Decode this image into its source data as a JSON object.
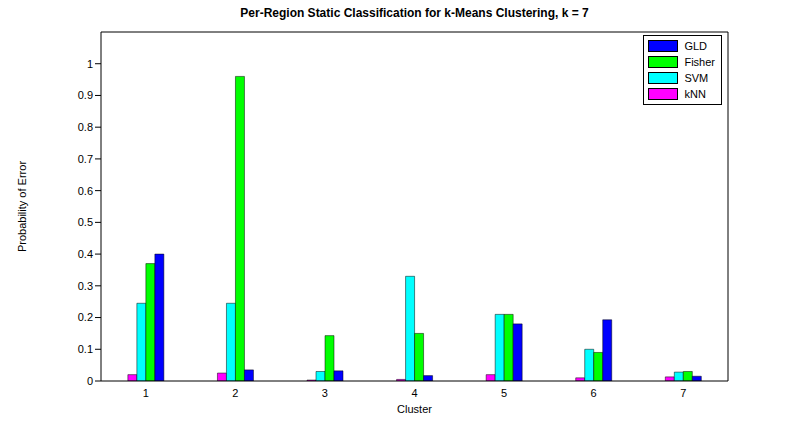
{
  "chart_data": {
    "type": "bar",
    "title": "Per-Region Static Classification for k-Means Clustering, k = 7",
    "x_label": "Cluster",
    "y_label": "Probability of Error",
    "categories": [
      "1",
      "2",
      "3",
      "4",
      "5",
      "6",
      "7"
    ],
    "series": [
      {
        "name": "GLD",
        "color": "#0000ff",
        "values": [
          0.4,
          0.035,
          0.032,
          0.017,
          0.18,
          0.193,
          0.015
        ]
      },
      {
        "name": "Fisher",
        "color": "#00ff00",
        "values": [
          0.37,
          0.96,
          0.143,
          0.15,
          0.21,
          0.09,
          0.03
        ]
      },
      {
        "name": "SVM",
        "color": "#00ffff",
        "values": [
          0.245,
          0.245,
          0.03,
          0.33,
          0.21,
          0.1,
          0.028
        ]
      },
      {
        "name": "kNN",
        "color": "#ff00ff",
        "values": [
          0.02,
          0.025,
          0.003,
          0.005,
          0.02,
          0.01,
          0.013
        ]
      }
    ],
    "ylim": [
      0,
      1.1
    ],
    "yticks": [
      0,
      0.1,
      0.2,
      0.3,
      0.4,
      0.5,
      0.6,
      0.7,
      0.8,
      0.9,
      1
    ],
    "legend": "upper right",
    "grid": false
  }
}
